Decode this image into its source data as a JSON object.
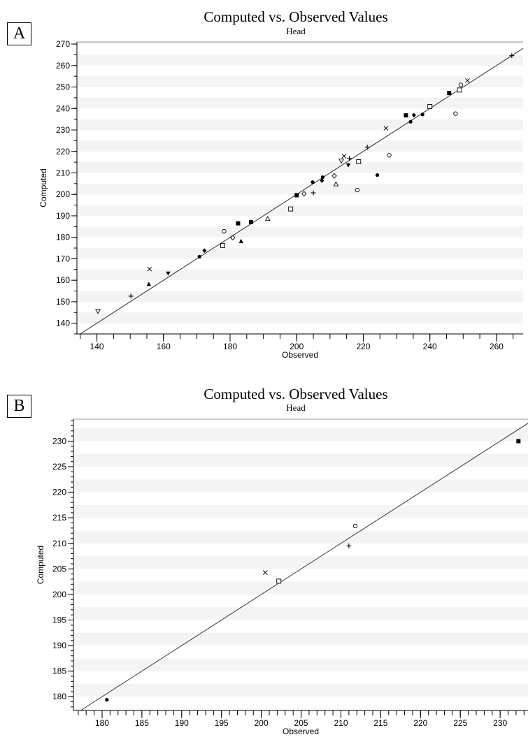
{
  "panels": [
    {
      "label": "A",
      "title": "Computed vs. Observed Values",
      "subtitle": "Head"
    },
    {
      "label": "B",
      "title": "Computed vs. Observed Values",
      "subtitle": "Head"
    }
  ],
  "chart_data": [
    {
      "type": "scatter",
      "title": "Computed vs. Observed Values",
      "subtitle": "Head",
      "xlabel": "Observed",
      "ylabel": "Computed",
      "xlim": [
        134,
        268
      ],
      "ylim": [
        135,
        271
      ],
      "xticks": [
        140,
        160,
        180,
        200,
        220,
        240,
        260
      ],
      "yticks": [
        140,
        150,
        160,
        170,
        180,
        190,
        200,
        210,
        220,
        230,
        240,
        250,
        260,
        270
      ],
      "grid": "horizontal bands",
      "reference_line": "y = x",
      "points": [
        {
          "x": 140.3,
          "y": 145.6,
          "marker": "triangle-down-open"
        },
        {
          "x": 150.2,
          "y": 152.6,
          "marker": "plus"
        },
        {
          "x": 155.6,
          "y": 158.2,
          "marker": "triangle-up-filled"
        },
        {
          "x": 155.8,
          "y": 165.2,
          "marker": "cross"
        },
        {
          "x": 161.4,
          "y": 163.2,
          "marker": "triangle-down-filled"
        },
        {
          "x": 170.8,
          "y": 171.0,
          "marker": "circle-filled"
        },
        {
          "x": 172.3,
          "y": 173.8,
          "marker": "diamond-filled"
        },
        {
          "x": 177.8,
          "y": 176.2,
          "marker": "square-open"
        },
        {
          "x": 178.2,
          "y": 182.8,
          "marker": "circle-open"
        },
        {
          "x": 180.8,
          "y": 179.8,
          "marker": "diamond-open"
        },
        {
          "x": 182.4,
          "y": 186.5,
          "marker": "square-filled"
        },
        {
          "x": 183.3,
          "y": 178.2,
          "marker": "triangle-up-filled"
        },
        {
          "x": 186.3,
          "y": 187.1,
          "marker": "square-filled"
        },
        {
          "x": 191.3,
          "y": 188.6,
          "marker": "triangle-up-open"
        },
        {
          "x": 198.2,
          "y": 193.2,
          "marker": "square-open"
        },
        {
          "x": 200.0,
          "y": 199.6,
          "marker": "square-filled"
        },
        {
          "x": 202.2,
          "y": 200.3,
          "marker": "diamond-open"
        },
        {
          "x": 204.8,
          "y": 205.7,
          "marker": "circle-filled"
        },
        {
          "x": 205.0,
          "y": 200.7,
          "marker": "plus"
        },
        {
          "x": 207.6,
          "y": 206.4,
          "marker": "diamond-filled"
        },
        {
          "x": 207.8,
          "y": 208.0,
          "marker": "circle-filled"
        },
        {
          "x": 211.3,
          "y": 208.6,
          "marker": "diamond-open"
        },
        {
          "x": 211.8,
          "y": 204.8,
          "marker": "triangle-up-open"
        },
        {
          "x": 213.4,
          "y": 215.6,
          "marker": "triangle-down-open"
        },
        {
          "x": 214.2,
          "y": 217.8,
          "marker": "cross"
        },
        {
          "x": 215.5,
          "y": 213.6,
          "marker": "triangle-down-filled"
        },
        {
          "x": 215.8,
          "y": 216.7,
          "marker": "plus"
        },
        {
          "x": 218.2,
          "y": 202.0,
          "marker": "circle-open"
        },
        {
          "x": 218.6,
          "y": 215.2,
          "marker": "square-open"
        },
        {
          "x": 221.2,
          "y": 222.0,
          "marker": "plus"
        },
        {
          "x": 224.2,
          "y": 209.0,
          "marker": "circle-filled"
        },
        {
          "x": 226.8,
          "y": 230.8,
          "marker": "cross"
        },
        {
          "x": 227.8,
          "y": 218.2,
          "marker": "circle-open"
        },
        {
          "x": 232.8,
          "y": 236.8,
          "marker": "square-filled"
        },
        {
          "x": 234.2,
          "y": 233.8,
          "marker": "circle-filled"
        },
        {
          "x": 235.2,
          "y": 236.9,
          "marker": "diamond-filled"
        },
        {
          "x": 237.8,
          "y": 237.2,
          "marker": "circle-filled"
        },
        {
          "x": 240.0,
          "y": 240.9,
          "marker": "square-open"
        },
        {
          "x": 245.8,
          "y": 247.2,
          "marker": "square-filled"
        },
        {
          "x": 247.7,
          "y": 237.6,
          "marker": "circle-open"
        },
        {
          "x": 248.9,
          "y": 248.6,
          "marker": "square-open"
        },
        {
          "x": 249.3,
          "y": 251.0,
          "marker": "circle-open"
        },
        {
          "x": 251.3,
          "y": 253.0,
          "marker": "cross"
        },
        {
          "x": 264.6,
          "y": 264.6,
          "marker": "plus"
        }
      ]
    },
    {
      "type": "scatter",
      "title": "Computed vs. Observed Values",
      "subtitle": "Head",
      "xlabel": "Observed",
      "ylabel": "Computed",
      "xlim": [
        176.4,
        233.5
      ],
      "ylim": [
        177.3,
        234.3
      ],
      "xticks": [
        180,
        185,
        190,
        195,
        200,
        205,
        210,
        215,
        220,
        225,
        230
      ],
      "yticks": [
        180,
        185,
        190,
        195,
        200,
        205,
        210,
        215,
        220,
        225,
        230
      ],
      "grid": "horizontal bands",
      "reference_line": "y = x",
      "points": [
        {
          "x": 180.6,
          "y": 179.4,
          "marker": "circle-filled"
        },
        {
          "x": 200.5,
          "y": 204.3,
          "marker": "cross"
        },
        {
          "x": 202.2,
          "y": 202.6,
          "marker": "square-open"
        },
        {
          "x": 211.0,
          "y": 209.5,
          "marker": "plus"
        },
        {
          "x": 211.8,
          "y": 213.4,
          "marker": "circle-open"
        },
        {
          "x": 232.3,
          "y": 230.0,
          "marker": "square-filled"
        }
      ]
    }
  ]
}
